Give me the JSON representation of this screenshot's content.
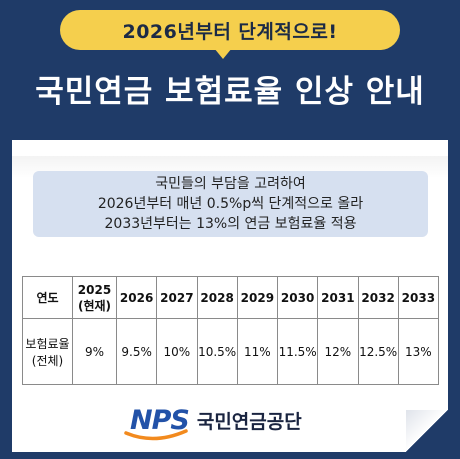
{
  "badge": {
    "text": "2026년부터 단계적으로!"
  },
  "title": "국민연금 보험료율 인상 안내",
  "info": {
    "lines": [
      "국민들의 부담을 고려하여",
      "2026년부터 매년 0.5%p씩 단계적으로 올라",
      "2033년부터는 13%의 연금 보험료율 적용"
    ]
  },
  "table": {
    "row_header_year": "연도",
    "row_header_rate": "보험료율\n(전체)",
    "years": [
      "2025\n(현재)",
      "2026",
      "2027",
      "2028",
      "2029",
      "2030",
      "2031",
      "2032",
      "2033"
    ],
    "rates": [
      "9%",
      "9.5%",
      "10%",
      "10.5%",
      "11%",
      "11.5%",
      "12%",
      "12.5%",
      "13%"
    ]
  },
  "logo": {
    "mark": "NPS",
    "org": "국민연금공단"
  },
  "colors": {
    "background": "#1f3b68",
    "badge": "#f5cf4d",
    "info_box": "#d6e0f0",
    "logo_blue": "#2252a8",
    "logo_orange": "#f28a1e"
  }
}
